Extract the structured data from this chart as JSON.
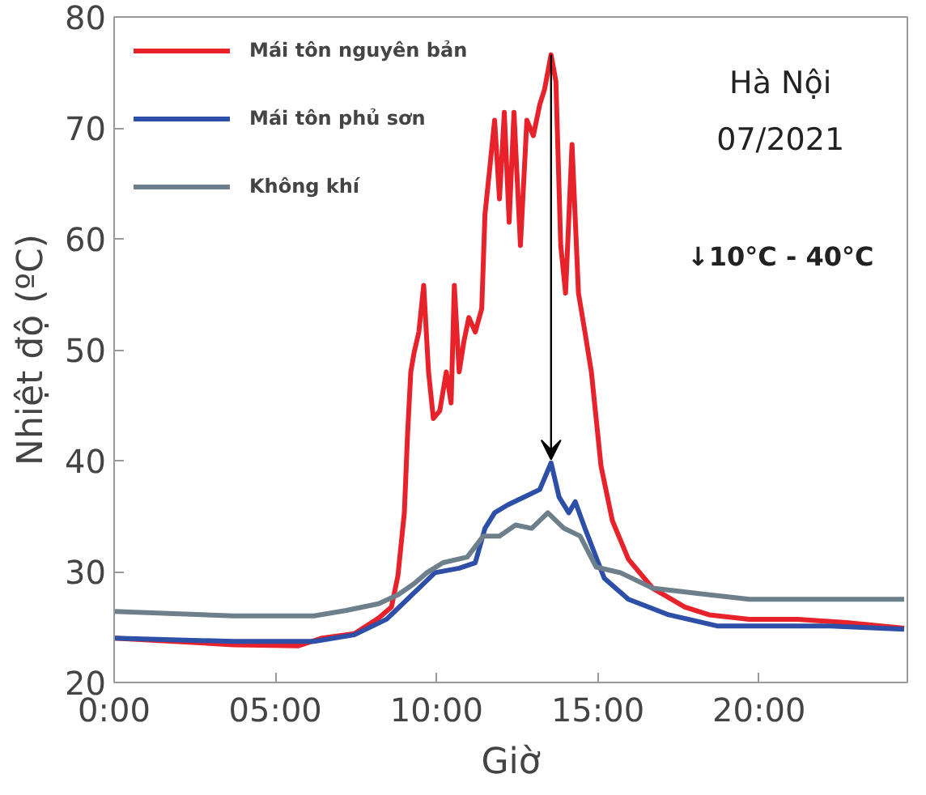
{
  "chart_data": {
    "type": "line",
    "xlabel": "Giờ",
    "ylabel": "Nhiệt độ (ºC)",
    "xlim": [
      0,
      24.6
    ],
    "ylim": [
      20,
      80
    ],
    "xticks": [
      {
        "value": 0,
        "label": "0:00"
      },
      {
        "value": 5,
        "label": "05:00"
      },
      {
        "value": 10,
        "label": "10:00"
      },
      {
        "value": 15,
        "label": "15:00"
      },
      {
        "value": 20,
        "label": "20:00"
      }
    ],
    "yticks": [
      20,
      30,
      40,
      50,
      60,
      70,
      80
    ],
    "grid": false,
    "legend": "top left",
    "marker": "none",
    "line_style": "solid",
    "annotations": [
      "Hà Nội",
      "07/2021",
      "↓10°C - 40°C"
    ],
    "series": [
      {
        "name": "Mái tôn nguyên bản",
        "color": "#e8222a",
        "x": [
          0,
          3.7,
          5.7,
          6.45,
          7.45,
          8.2,
          8.6,
          8.8,
          9.0,
          9.1,
          9.2,
          9.3,
          9.45,
          9.6,
          9.75,
          9.9,
          10.1,
          10.3,
          10.45,
          10.55,
          10.7,
          10.85,
          11.0,
          11.2,
          11.4,
          11.5,
          11.65,
          11.8,
          11.95,
          12.1,
          12.25,
          12.4,
          12.6,
          12.8,
          13.0,
          13.2,
          13.35,
          13.55,
          13.7,
          13.85,
          14.0,
          14.2,
          14.4,
          14.6,
          14.8,
          15.1,
          15.45,
          15.95,
          16.7,
          17.7,
          18.45,
          19.7,
          21.2,
          22.7,
          24.5
        ],
        "values": [
          24.0,
          23.4,
          23.3,
          24.0,
          24.4,
          25.8,
          26.8,
          29.6,
          35.3,
          42.4,
          48.0,
          49.7,
          51.6,
          55.8,
          48.0,
          43.8,
          44.5,
          48.0,
          45.2,
          55.8,
          48.0,
          50.8,
          52.9,
          51.6,
          53.7,
          62.2,
          66.4,
          70.7,
          63.6,
          71.4,
          61.5,
          71.4,
          59.4,
          70.7,
          69.3,
          72.1,
          73.5,
          76.6,
          74.2,
          59.4,
          55.1,
          68.5,
          55.1,
          51.6,
          48.0,
          39.5,
          34.6,
          31.1,
          28.5,
          26.8,
          26.1,
          25.7,
          25.7,
          25.4,
          24.9
        ]
      },
      {
        "name": "Mái tôn phủ sơn",
        "color": "#2e4fa8",
        "x": [
          0,
          3.7,
          6.2,
          7.45,
          8.45,
          9.45,
          9.95,
          10.7,
          11.2,
          11.5,
          11.8,
          12.2,
          12.7,
          13.2,
          13.55,
          13.8,
          14.1,
          14.3,
          14.6,
          15.2,
          15.95,
          17.2,
          18.7,
          20.2,
          22.2,
          24.5
        ],
        "values": [
          24.0,
          23.7,
          23.7,
          24.3,
          25.7,
          28.5,
          29.9,
          30.3,
          30.8,
          33.9,
          35.3,
          36.0,
          36.7,
          37.4,
          39.8,
          36.7,
          35.3,
          36.3,
          33.9,
          29.4,
          27.5,
          26.1,
          25.1,
          25.1,
          25.1,
          24.8
        ]
      },
      {
        "name": "Không khí",
        "color": "#6e7f8c",
        "x": [
          0,
          3.7,
          6.2,
          7.2,
          8.2,
          8.8,
          9.3,
          9.7,
          10.2,
          10.95,
          11.45,
          11.95,
          12.45,
          12.95,
          13.45,
          13.95,
          14.45,
          14.95,
          15.7,
          16.7,
          18.2,
          19.7,
          24.5
        ],
        "values": [
          26.4,
          26.0,
          26.0,
          26.5,
          27.1,
          27.9,
          28.9,
          29.9,
          30.8,
          31.3,
          33.2,
          33.2,
          34.2,
          33.9,
          35.3,
          33.9,
          33.2,
          30.4,
          29.9,
          28.5,
          28.0,
          27.5,
          27.5
        ]
      }
    ]
  }
}
